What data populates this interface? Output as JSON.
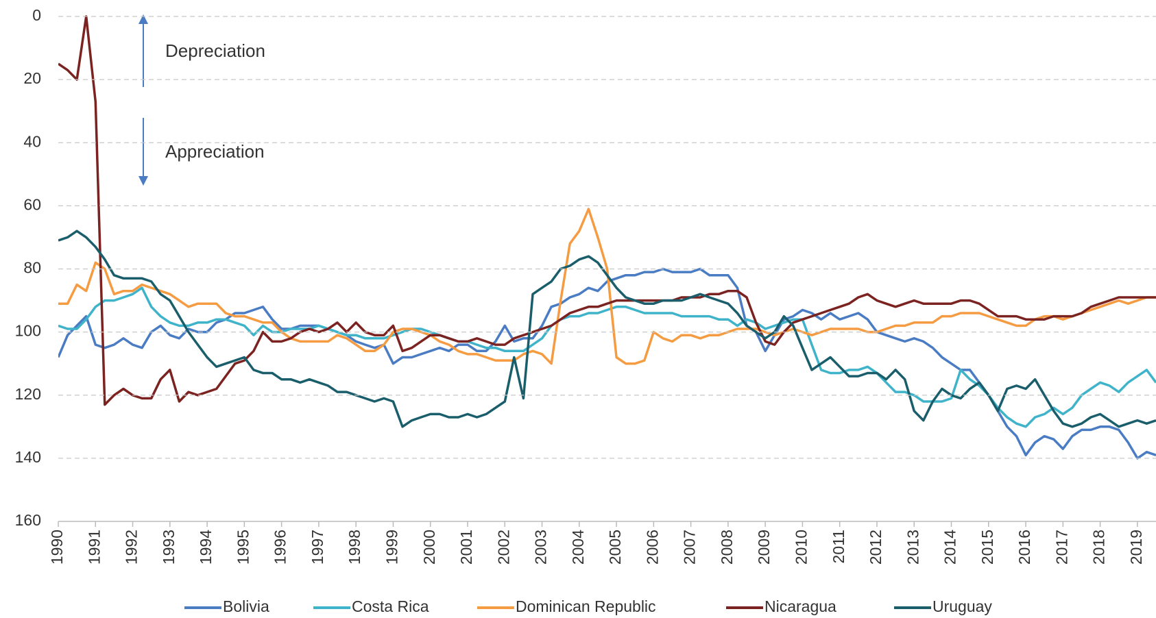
{
  "chart_data": {
    "type": "line",
    "annotations": [
      "Depreciation",
      "Appreciation"
    ],
    "x": [
      1990,
      1990.25,
      1990.5,
      1990.75,
      1991,
      1991.25,
      1991.5,
      1991.75,
      1992,
      1992.25,
      1992.5,
      1992.75,
      1993,
      1993.25,
      1993.5,
      1993.75,
      1994,
      1994.25,
      1994.5,
      1994.75,
      1995,
      1995.25,
      1995.5,
      1995.75,
      1996,
      1996.25,
      1996.5,
      1996.75,
      1997,
      1997.25,
      1997.5,
      1997.75,
      1998,
      1998.25,
      1998.5,
      1998.75,
      1999,
      1999.25,
      1999.5,
      1999.75,
      2000,
      2000.25,
      2000.5,
      2000.75,
      2001,
      2001.25,
      2001.5,
      2001.75,
      2002,
      2002.25,
      2002.5,
      2002.75,
      2003,
      2003.25,
      2003.5,
      2003.75,
      2004,
      2004.25,
      2004.5,
      2004.75,
      2005,
      2005.25,
      2005.5,
      2005.75,
      2006,
      2006.25,
      2006.5,
      2006.75,
      2007,
      2007.25,
      2007.5,
      2007.75,
      2008,
      2008.25,
      2008.5,
      2008.75,
      2009,
      2009.25,
      2009.5,
      2009.75,
      2010,
      2010.25,
      2010.5,
      2010.75,
      2011,
      2011.25,
      2011.5,
      2011.75,
      2012,
      2012.25,
      2012.5,
      2012.75,
      2013,
      2013.25,
      2013.5,
      2013.75,
      2014,
      2014.25,
      2014.5,
      2014.75,
      2015,
      2015.25,
      2015.5,
      2015.75,
      2016,
      2016.25,
      2016.5,
      2016.75,
      2017,
      2017.25,
      2017.5,
      2017.75,
      2018,
      2018.25,
      2018.5,
      2018.75,
      2019,
      2019.25,
      2019.5
    ],
    "series": [
      {
        "name": "Bolivia",
        "color": "#4a7cc4",
        "values": [
          108,
          101,
          98,
          95,
          104,
          105,
          104,
          102,
          104,
          105,
          100,
          98,
          101,
          102,
          99,
          100,
          100,
          97,
          96,
          94,
          94,
          93,
          92,
          96,
          99,
          99,
          98,
          98,
          98,
          99,
          100,
          101,
          103,
          104,
          105,
          104,
          110,
          108,
          108,
          107,
          106,
          105,
          106,
          104,
          104,
          106,
          106,
          103,
          98,
          103,
          102,
          102,
          98,
          92,
          91,
          89,
          88,
          86,
          87,
          84,
          83,
          82,
          82,
          81,
          81,
          80,
          81,
          81,
          81,
          80,
          82,
          82,
          82,
          86,
          98,
          100,
          106,
          101,
          96,
          95,
          93,
          94,
          96,
          94,
          96,
          95,
          94,
          96,
          100,
          101,
          102,
          103,
          102,
          103,
          105,
          108,
          110,
          112,
          112,
          116,
          120,
          125,
          130,
          133,
          139,
          135,
          133,
          134,
          137,
          133,
          131,
          131,
          130,
          130,
          131,
          135,
          140,
          138,
          139
        ]
      },
      {
        "name": "Costa Rica",
        "color": "#3fb3c9",
        "values": [
          98,
          99,
          99,
          96,
          92,
          90,
          90,
          89,
          88,
          86,
          92,
          95,
          97,
          98,
          98,
          97,
          97,
          96,
          96,
          97,
          98,
          101,
          98,
          100,
          100,
          99,
          99,
          99,
          98,
          99,
          100,
          101,
          101,
          102,
          102,
          102,
          101,
          100,
          99,
          99,
          100,
          101,
          102,
          103,
          103,
          104,
          105,
          105,
          106,
          106,
          106,
          104,
          102,
          98,
          96,
          95,
          95,
          94,
          94,
          93,
          92,
          92,
          93,
          94,
          94,
          94,
          94,
          95,
          95,
          95,
          95,
          96,
          96,
          98,
          96,
          97,
          99,
          98,
          97,
          96,
          96,
          104,
          112,
          113,
          113,
          112,
          112,
          111,
          113,
          116,
          119,
          119,
          120,
          122,
          122,
          122,
          121,
          112,
          115,
          117,
          120,
          124,
          127,
          129,
          130,
          127,
          126,
          124,
          126,
          124,
          120,
          118,
          116,
          117,
          119,
          116,
          114,
          112,
          116
        ]
      },
      {
        "name": "Dominican Republic",
        "color": "#f59b42",
        "values": [
          91,
          91,
          85,
          87,
          78,
          80,
          88,
          87,
          87,
          85,
          86,
          87,
          88,
          90,
          92,
          91,
          91,
          91,
          94,
          95,
          95,
          96,
          97,
          97,
          100,
          102,
          103,
          103,
          103,
          103,
          101,
          102,
          104,
          106,
          106,
          104,
          100,
          99,
          99,
          100,
          101,
          103,
          104,
          106,
          107,
          107,
          108,
          109,
          109,
          109,
          107,
          106,
          107,
          110,
          90,
          72,
          68,
          61,
          70,
          80,
          108,
          110,
          110,
          109,
          100,
          102,
          103,
          101,
          101,
          102,
          101,
          101,
          100,
          99,
          99,
          99,
          100,
          101,
          100,
          99,
          100,
          101,
          100,
          99,
          99,
          99,
          99,
          100,
          100,
          99,
          98,
          98,
          97,
          97,
          97,
          95,
          95,
          94,
          94,
          94,
          95,
          96,
          97,
          98,
          98,
          96,
          95,
          95,
          96,
          95,
          94,
          93,
          92,
          91,
          90,
          91,
          90,
          89,
          89
        ]
      },
      {
        "name": "Nicaragua",
        "color": "#7b2320",
        "values": [
          15,
          17,
          20,
          0,
          27,
          123,
          120,
          118,
          120,
          121,
          121,
          115,
          112,
          122,
          119,
          120,
          119,
          118,
          114,
          110,
          109,
          106,
          100,
          103,
          103,
          102,
          100,
          99,
          100,
          99,
          97,
          100,
          97,
          100,
          101,
          101,
          98,
          106,
          105,
          103,
          101,
          101,
          102,
          103,
          103,
          102,
          103,
          104,
          104,
          102,
          101,
          100,
          99,
          98,
          96,
          94,
          93,
          92,
          92,
          91,
          90,
          90,
          90,
          90,
          90,
          90,
          90,
          89,
          89,
          89,
          88,
          88,
          87,
          87,
          89,
          97,
          103,
          104,
          100,
          97,
          96,
          95,
          94,
          93,
          92,
          91,
          89,
          88,
          90,
          91,
          92,
          91,
          90,
          91,
          91,
          91,
          91,
          90,
          90,
          91,
          93,
          95,
          95,
          95,
          96,
          96,
          96,
          95,
          95,
          95,
          94,
          92,
          91,
          90,
          89,
          89,
          89,
          89,
          89
        ]
      },
      {
        "name": "Uruguay",
        "color": "#1b5e6b",
        "values": [
          71,
          70,
          68,
          70,
          73,
          77,
          82,
          83,
          83,
          83,
          84,
          88,
          90,
          95,
          100,
          104,
          108,
          111,
          110,
          109,
          108,
          112,
          113,
          113,
          115,
          115,
          116,
          115,
          116,
          117,
          119,
          119,
          120,
          121,
          122,
          121,
          122,
          130,
          128,
          127,
          126,
          126,
          127,
          127,
          126,
          127,
          126,
          124,
          122,
          108,
          121,
          88,
          86,
          84,
          80,
          79,
          77,
          76,
          78,
          82,
          86,
          89,
          90,
          91,
          91,
          90,
          90,
          90,
          89,
          88,
          89,
          90,
          91,
          94,
          98,
          100,
          102,
          100,
          95,
          98,
          105,
          112,
          110,
          108,
          111,
          114,
          114,
          113,
          113,
          115,
          112,
          115,
          125,
          128,
          122,
          118,
          120,
          121,
          118,
          116,
          120,
          125,
          118,
          117,
          118,
          115,
          120,
          125,
          129,
          130,
          129,
          127,
          126,
          128,
          130,
          129,
          128,
          129,
          128
        ]
      }
    ],
    "xlim": [
      1990,
      2019.5
    ],
    "xticks": [
      1990,
      1991,
      1992,
      1993,
      1994,
      1995,
      1996,
      1997,
      1998,
      1999,
      2000,
      2001,
      2002,
      2003,
      2004,
      2005,
      2006,
      2007,
      2008,
      2009,
      2010,
      2011,
      2012,
      2013,
      2014,
      2015,
      2016,
      2017,
      2018,
      2019
    ],
    "ylim": [
      160,
      0
    ],
    "yticks": [
      0,
      20,
      40,
      60,
      80,
      100,
      120,
      140,
      160
    ],
    "grid": true,
    "legend": "bottom"
  }
}
